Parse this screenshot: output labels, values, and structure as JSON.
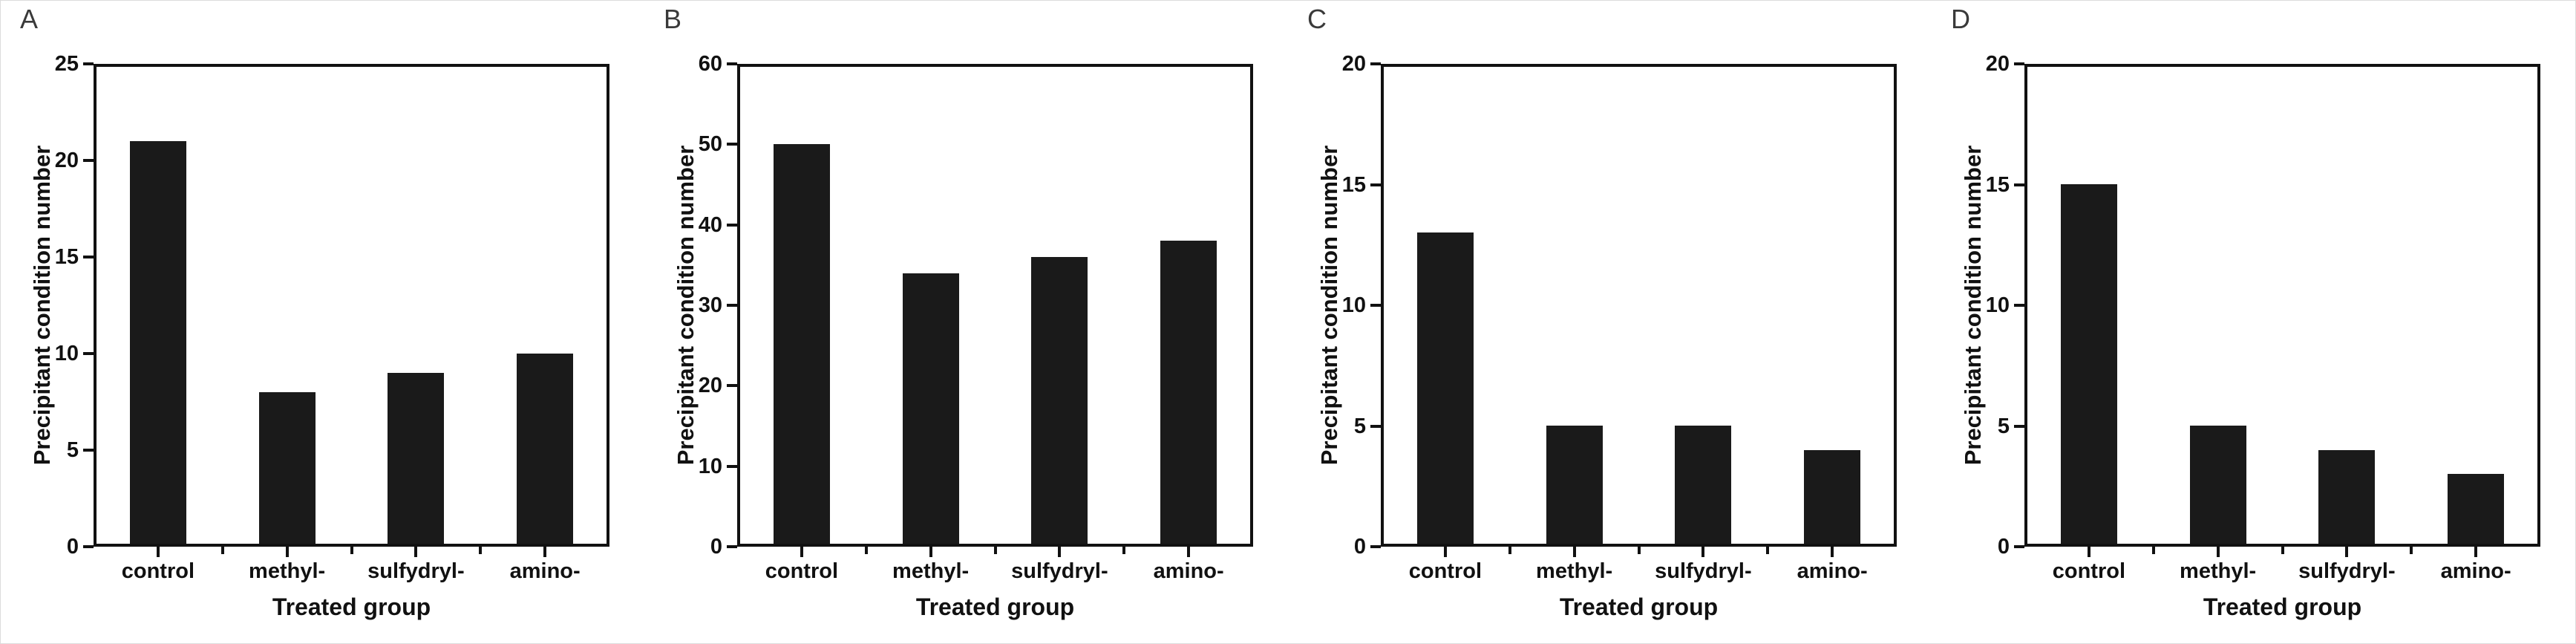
{
  "figure": {
    "background": "#ffffff",
    "bar_color": "#1a1a1a",
    "axis_color": "#111111",
    "panel_letter_color": "#3a3a3a"
  },
  "chart_data": [
    {
      "type": "bar",
      "panel_label": "A",
      "title": "",
      "xlabel": "Treated group",
      "ylabel": "Precipitant condition number",
      "categories": [
        "control",
        "methyl-",
        "sulfydryl-",
        "amino-"
      ],
      "values": [
        21,
        8,
        9,
        10
      ],
      "ylim": [
        0,
        25
      ],
      "yticks": [
        0,
        5,
        10,
        15,
        20,
        25
      ],
      "grid": false,
      "legend": "none"
    },
    {
      "type": "bar",
      "panel_label": "B",
      "title": "",
      "xlabel": "Treated group",
      "ylabel": "Precipitant condition number",
      "categories": [
        "control",
        "methyl-",
        "sulfydryl-",
        "amino-"
      ],
      "values": [
        50,
        34,
        36,
        38
      ],
      "ylim": [
        0,
        60
      ],
      "yticks": [
        0,
        10,
        20,
        30,
        40,
        50,
        60
      ],
      "grid": false,
      "legend": "none"
    },
    {
      "type": "bar",
      "panel_label": "C",
      "title": "",
      "xlabel": "Treated group",
      "ylabel": "Precipitant condition number",
      "categories": [
        "control",
        "methyl-",
        "sulfydryl-",
        "amino-"
      ],
      "values": [
        13,
        5,
        5,
        4
      ],
      "ylim": [
        0,
        20
      ],
      "yticks": [
        0,
        5,
        10,
        15,
        20
      ],
      "grid": false,
      "legend": "none"
    },
    {
      "type": "bar",
      "panel_label": "D",
      "title": "",
      "xlabel": "Treated group",
      "ylabel": "Precipitant condition number",
      "categories": [
        "control",
        "methyl-",
        "sulfydryl-",
        "amino-"
      ],
      "values": [
        15,
        5,
        4,
        3
      ],
      "ylim": [
        0,
        20
      ],
      "yticks": [
        0,
        5,
        10,
        15,
        20
      ],
      "grid": false,
      "legend": "none"
    }
  ]
}
